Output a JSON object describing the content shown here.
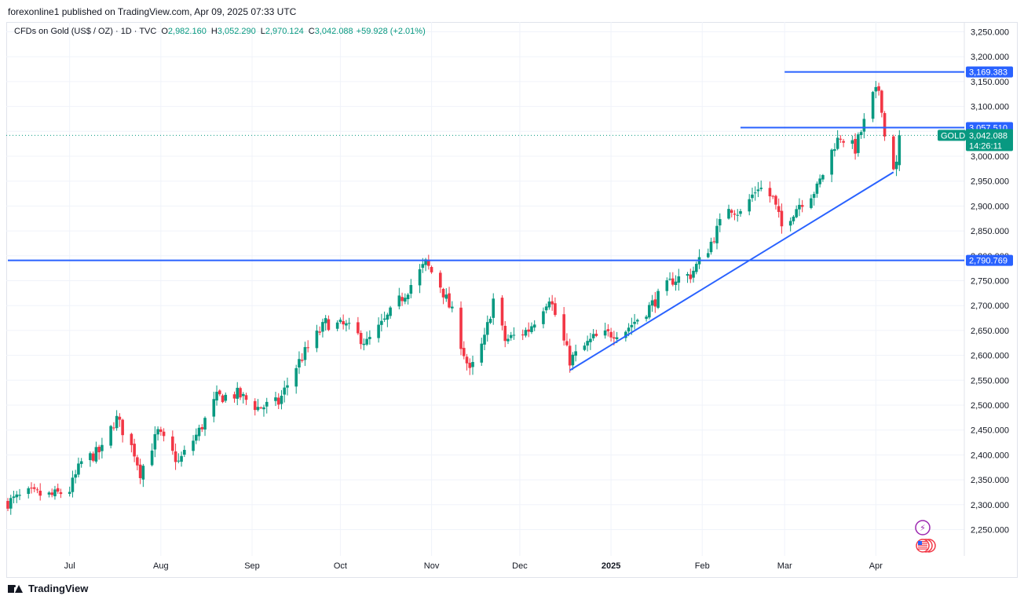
{
  "publisher": "forexonline1 published on TradingView.com, Apr 09, 2025 07:33 UTC",
  "legend": {
    "symbol": "CFDs on Gold (US$ / OZ) · 1D · TVC",
    "o_label": "O",
    "o_value": "2,982.160",
    "h_label": "H",
    "h_value": "3,052.290",
    "l_label": "L",
    "l_value": "2,970.124",
    "c_label": "C",
    "c_value": "3,042.088",
    "change": "+59.928 (+2.01%)"
  },
  "price_badge": {
    "label": "GOLD",
    "price": "3,042.088",
    "countdown": "14:26:11"
  },
  "footer": {
    "brand": "TradingView",
    "logo_icon": "tradingview-logo-icon"
  },
  "colors": {
    "up": "#089981",
    "down": "#f23645",
    "line": "#2962ff",
    "price": "#089981"
  },
  "chart_data": {
    "type": "candlestick",
    "y_ticks": [
      "3,250.000",
      "3,200.000",
      "3,150.000",
      "3,100.000",
      "3,050.000",
      "3,000.000",
      "2,950.000",
      "2,900.000",
      "2,850.000",
      "2,800.000",
      "2,750.000",
      "2,700.000",
      "2,650.000",
      "2,600.000",
      "2,550.000",
      "2,500.000",
      "2,450.000",
      "2,400.000",
      "2,350.000",
      "2,300.000",
      "2,250.000"
    ],
    "y_tick_values": [
      3250,
      3200,
      3150,
      3100,
      3050,
      3000,
      2950,
      2900,
      2850,
      2800,
      2750,
      2700,
      2650,
      2600,
      2550,
      2500,
      2450,
      2400,
      2350,
      2300,
      2250
    ],
    "x_ticks": [
      {
        "label": "Jul",
        "date": "2024-07-01",
        "bold": false
      },
      {
        "label": "Aug",
        "date": "2024-08-01",
        "bold": false
      },
      {
        "label": "Sep",
        "date": "2024-09-01",
        "bold": false
      },
      {
        "label": "Oct",
        "date": "2024-10-01",
        "bold": false
      },
      {
        "label": "Nov",
        "date": "2024-11-01",
        "bold": false
      },
      {
        "label": "Dec",
        "date": "2024-12-01",
        "bold": false
      },
      {
        "label": "2025",
        "date": "2025-01-01",
        "bold": true
      },
      {
        "label": "Feb",
        "date": "2025-02-01",
        "bold": false
      },
      {
        "label": "Mar",
        "date": "2025-03-01",
        "bold": false
      },
      {
        "label": "Apr",
        "date": "2025-04-01",
        "bold": false
      }
    ],
    "ylim": [
      2200,
      3300
    ],
    "xlim": [
      "2024-06-10",
      "2025-04-30"
    ],
    "grid": true,
    "anchors": [
      {
        "date": "2024-06-10",
        "price": 2305
      },
      {
        "date": "2024-06-17",
        "price": 2322
      },
      {
        "date": "2024-06-25",
        "price": 2318
      },
      {
        "date": "2024-07-01",
        "price": 2330
      },
      {
        "date": "2024-07-05",
        "price": 2385
      },
      {
        "date": "2024-07-12",
        "price": 2410
      },
      {
        "date": "2024-07-16",
        "price": 2465
      },
      {
        "date": "2024-07-17",
        "price": 2472
      },
      {
        "date": "2024-07-23",
        "price": 2405
      },
      {
        "date": "2024-07-25",
        "price": 2365
      },
      {
        "date": "2024-07-31",
        "price": 2445
      },
      {
        "date": "2024-08-07",
        "price": 2385
      },
      {
        "date": "2024-08-14",
        "price": 2448
      },
      {
        "date": "2024-08-20",
        "price": 2515
      },
      {
        "date": "2024-08-27",
        "price": 2522
      },
      {
        "date": "2024-09-03",
        "price": 2495
      },
      {
        "date": "2024-09-10",
        "price": 2505
      },
      {
        "date": "2024-09-16",
        "price": 2578
      },
      {
        "date": "2024-09-20",
        "price": 2615
      },
      {
        "date": "2024-09-26",
        "price": 2665
      },
      {
        "date": "2024-10-03",
        "price": 2658
      },
      {
        "date": "2024-10-10",
        "price": 2625
      },
      {
        "date": "2024-10-16",
        "price": 2668
      },
      {
        "date": "2024-10-23",
        "price": 2725
      },
      {
        "date": "2024-10-30",
        "price": 2785
      },
      {
        "date": "2024-11-04",
        "price": 2740
      },
      {
        "date": "2024-11-08",
        "price": 2685
      },
      {
        "date": "2024-11-14",
        "price": 2565
      },
      {
        "date": "2024-11-19",
        "price": 2632
      },
      {
        "date": "2024-11-22",
        "price": 2712
      },
      {
        "date": "2024-11-26",
        "price": 2630
      },
      {
        "date": "2024-12-04",
        "price": 2652
      },
      {
        "date": "2024-12-11",
        "price": 2718
      },
      {
        "date": "2024-12-18",
        "price": 2590
      },
      {
        "date": "2024-12-26",
        "price": 2634
      },
      {
        "date": "2025-01-06",
        "price": 2652
      },
      {
        "date": "2025-01-13",
        "price": 2690
      },
      {
        "date": "2025-01-22",
        "price": 2752
      },
      {
        "date": "2025-01-28",
        "price": 2762
      },
      {
        "date": "2025-02-03",
        "price": 2815
      },
      {
        "date": "2025-02-10",
        "price": 2900
      },
      {
        "date": "2025-02-14",
        "price": 2885
      },
      {
        "date": "2025-02-20",
        "price": 2940
      },
      {
        "date": "2025-02-25",
        "price": 2915
      },
      {
        "date": "2025-02-28",
        "price": 2858
      },
      {
        "date": "2025-03-06",
        "price": 2905
      },
      {
        "date": "2025-03-12",
        "price": 2935
      },
      {
        "date": "2025-03-18",
        "price": 3025
      },
      {
        "date": "2025-03-20",
        "price": 3040
      },
      {
        "date": "2025-03-25",
        "price": 3015
      },
      {
        "date": "2025-03-31",
        "price": 3120
      },
      {
        "date": "2025-04-02",
        "price": 3134
      },
      {
        "date": "2025-04-03",
        "price": 3100
      },
      {
        "date": "2025-04-04",
        "price": 3040
      },
      {
        "date": "2025-04-07",
        "price": 2982
      },
      {
        "date": "2025-04-08",
        "price": 2982
      }
    ],
    "last_candle": {
      "date": "2025-04-09",
      "open": 2982.16,
      "high": 3052.29,
      "low": 2970.124,
      "close": 3042.088
    },
    "horizontal_levels": [
      {
        "price": 3169.383,
        "label": "3,169.383",
        "from": "2025-03-01"
      },
      {
        "price": 3057.51,
        "label": "3,057.510",
        "from": "2025-02-14"
      },
      {
        "price": 2790.769,
        "label": "2,790.769",
        "from": "2024-06-10"
      }
    ],
    "trendline": {
      "from": {
        "date": "2024-12-18",
        "price": 2570
      },
      "to": {
        "date": "2025-04-07",
        "price": 2968
      }
    },
    "current_price": 3042.088
  },
  "event_icons": [
    {
      "name": "lightning-event-icon",
      "glyph": "⚡"
    },
    {
      "name": "us-flag-event-icon",
      "glyph": "🇺🇸"
    }
  ]
}
